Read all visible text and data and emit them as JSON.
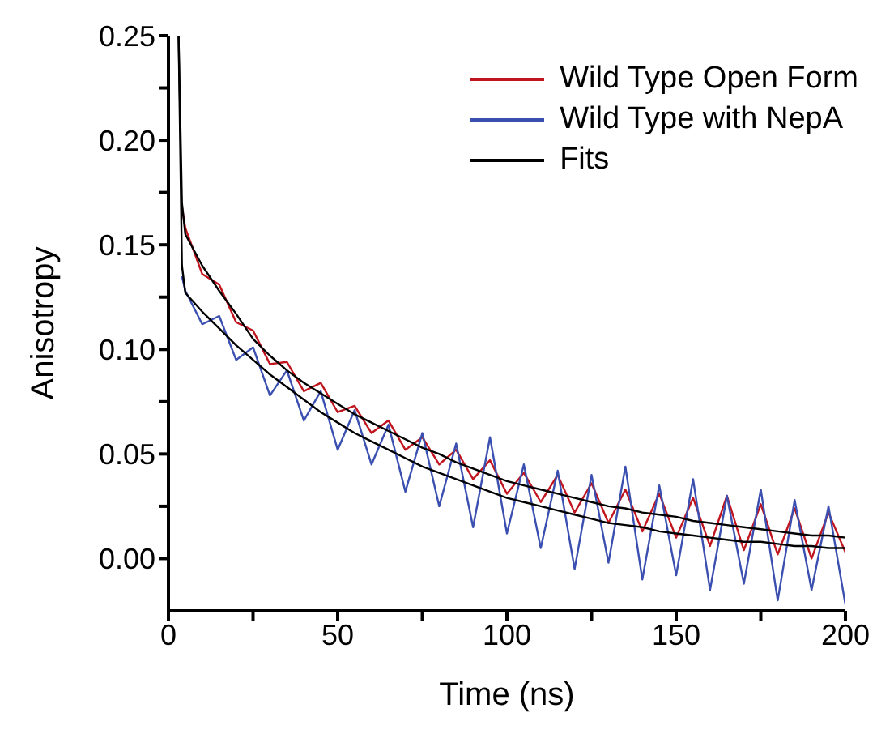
{
  "chart_data": {
    "type": "line",
    "xlabel": "Time (ns)",
    "ylabel": "Anisotropy",
    "x": [
      3,
      4,
      5,
      10,
      15,
      20,
      25,
      30,
      35,
      40,
      45,
      50,
      55,
      60,
      65,
      70,
      75,
      80,
      85,
      90,
      95,
      100,
      105,
      110,
      115,
      120,
      125,
      130,
      135,
      140,
      145,
      150,
      155,
      160,
      165,
      170,
      175,
      180,
      185,
      190,
      195,
      200
    ],
    "series": [
      {
        "name": "Wild Type Open Form",
        "color": "#c0141e",
        "values": [
          null,
          0.168,
          0.158,
          0.136,
          0.131,
          0.113,
          0.109,
          0.093,
          0.094,
          0.08,
          0.084,
          0.07,
          0.073,
          0.06,
          0.066,
          0.052,
          0.058,
          0.045,
          0.052,
          0.038,
          0.047,
          0.031,
          0.041,
          0.027,
          0.04,
          0.022,
          0.036,
          0.017,
          0.033,
          0.013,
          0.031,
          0.01,
          0.029,
          0.006,
          0.03,
          0.004,
          0.026,
          0.002,
          0.024,
          0.0,
          0.022,
          0.003
        ]
      },
      {
        "name": "Wild Type with NepA",
        "color": "#3a4fb0",
        "values": [
          null,
          0.135,
          0.128,
          0.112,
          0.116,
          0.095,
          0.101,
          0.078,
          0.09,
          0.066,
          0.08,
          0.052,
          0.071,
          0.045,
          0.064,
          0.032,
          0.06,
          0.025,
          0.055,
          0.015,
          0.058,
          0.012,
          0.045,
          0.005,
          0.042,
          -0.005,
          0.04,
          -0.002,
          0.044,
          -0.01,
          0.035,
          -0.008,
          0.038,
          -0.015,
          0.03,
          -0.012,
          0.033,
          -0.02,
          0.028,
          -0.015,
          0.025,
          -0.022
        ]
      },
      {
        "name": "Fits",
        "color": "#000000",
        "values": [
          0.25,
          0.17,
          0.155,
          0.14,
          0.128,
          0.117,
          0.105,
          0.097,
          0.09,
          0.084,
          0.079,
          0.074,
          0.069,
          0.065,
          0.061,
          0.057,
          0.053,
          0.05,
          0.046,
          0.043,
          0.04,
          0.037,
          0.035,
          0.033,
          0.031,
          0.029,
          0.027,
          0.025,
          0.024,
          0.022,
          0.021,
          0.02,
          0.018,
          0.017,
          0.016,
          0.015,
          0.014,
          0.013,
          0.012,
          0.011,
          0.011,
          0.01
        ]
      },
      {
        "color": "#000000",
        "values": [
          0.25,
          0.14,
          0.127,
          0.118,
          0.11,
          0.102,
          0.095,
          0.088,
          0.082,
          0.076,
          0.07,
          0.065,
          0.06,
          0.056,
          0.052,
          0.048,
          0.044,
          0.041,
          0.038,
          0.035,
          0.032,
          0.029,
          0.027,
          0.025,
          0.023,
          0.021,
          0.019,
          0.017,
          0.016,
          0.015,
          0.013,
          0.012,
          0.011,
          0.01,
          0.009,
          0.008,
          0.008,
          0.007,
          0.006,
          0.006,
          0.005,
          0.005
        ]
      }
    ],
    "xlim": [
      0,
      200
    ],
    "xticks": [
      0,
      {
        "value": 25,
        "label": null
      },
      50,
      {
        "value": 75,
        "label": null
      },
      100,
      {
        "value": 125,
        "label": null
      },
      150,
      {
        "value": 175,
        "label": null
      },
      200
    ],
    "ylim": [
      -0.025,
      0.25
    ],
    "yticks": [
      {
        "value": 0,
        "label": "0.00"
      },
      {
        "value": 0.025,
        "label": null
      },
      {
        "value": 0.05,
        "label": "0.05"
      },
      {
        "value": 0.075,
        "label": null
      },
      {
        "value": 0.1,
        "label": "0.10"
      },
      {
        "value": 0.125,
        "label": null
      },
      {
        "value": 0.15,
        "label": "0.15"
      },
      {
        "value": 0.175,
        "label": null
      },
      {
        "value": 0.2,
        "label": "0.20"
      },
      {
        "value": 0.225,
        "label": null
      },
      {
        "value": 0.25,
        "label": "0.25"
      }
    ],
    "grid": false,
    "legend": "top right",
    "marker": "none",
    "line_style": "solid"
  }
}
